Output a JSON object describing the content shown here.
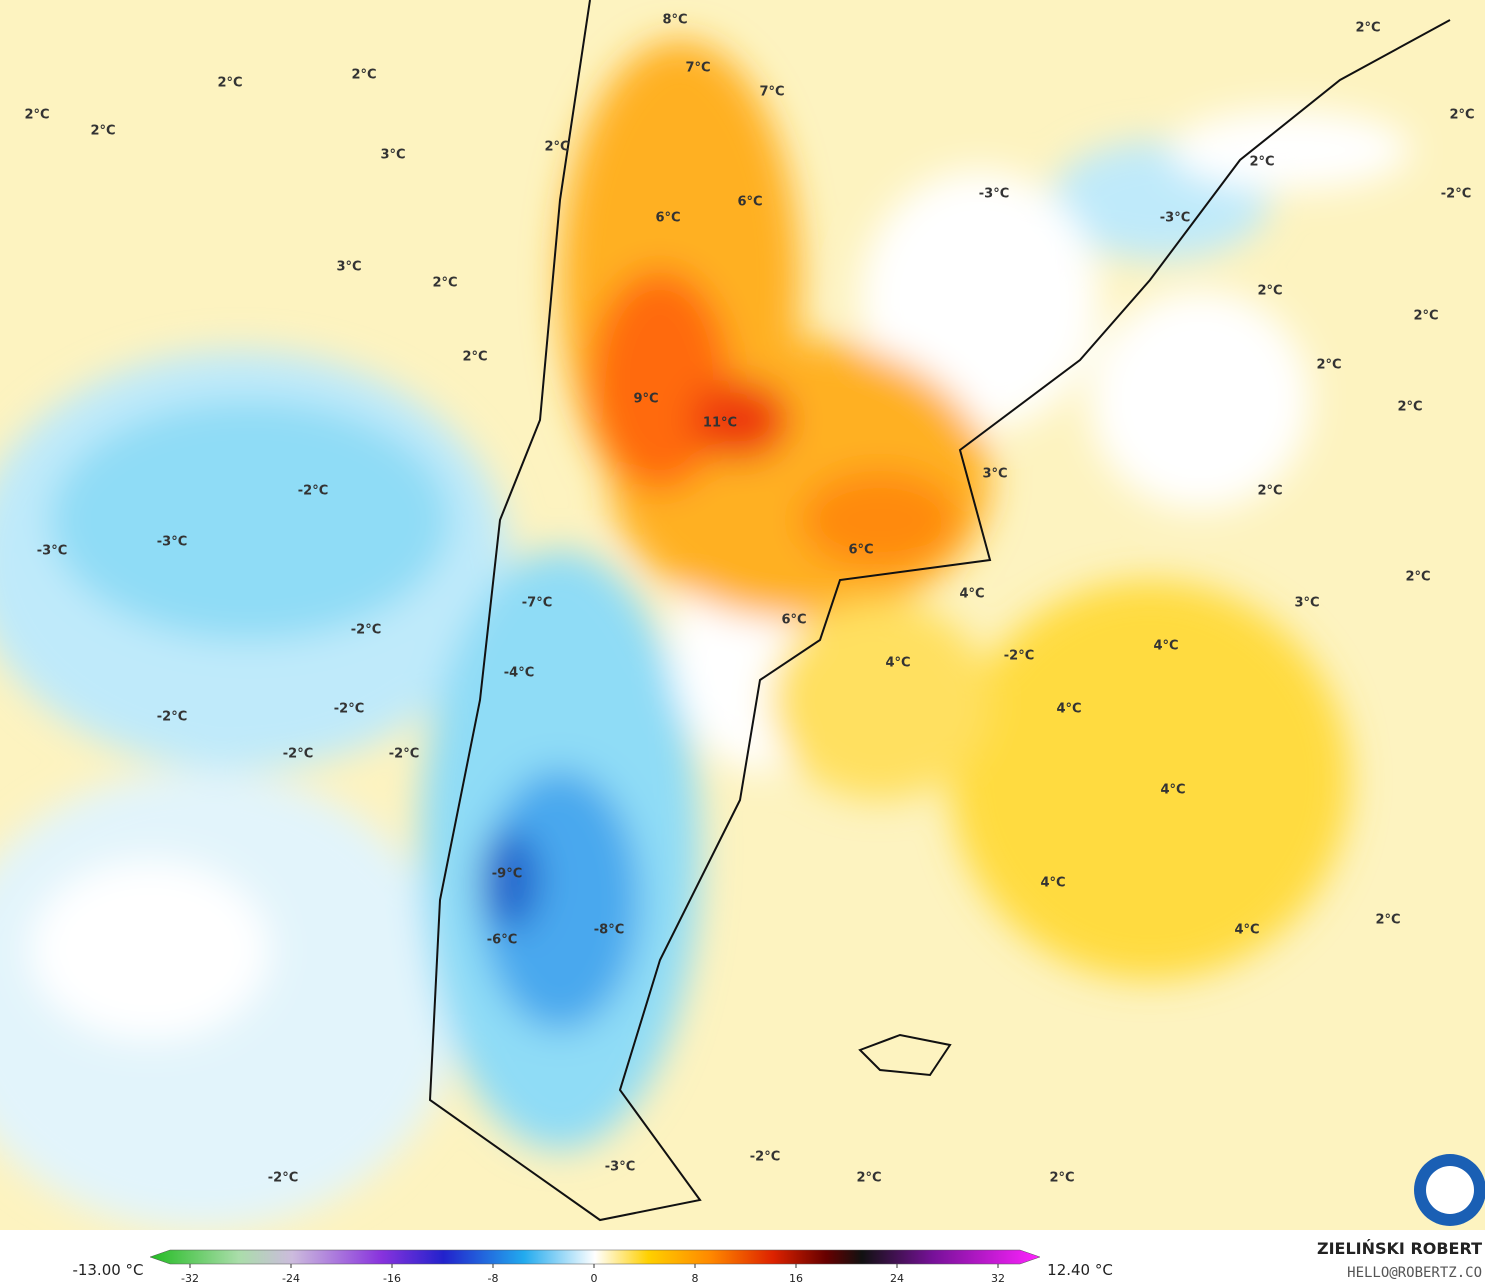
{
  "map": {
    "labels": [
      "8°C",
      "2°C",
      "7°C",
      "7°C",
      "2°C",
      "2°C",
      "2°C",
      "2°C",
      "2°C",
      "3°C",
      "2°C",
      "2°C",
      "-3°C",
      "-2°C",
      "6°C",
      "6°C",
      "-3°C",
      "3°C",
      "2°C",
      "2°C",
      "2°C",
      "2°C",
      "2°C",
      "9°C",
      "11°C",
      "2°C",
      "3°C",
      "-2°C",
      "2°C",
      "-3°C",
      "-3°C",
      "6°C",
      "2°C",
      "4°C",
      "-7°C",
      "3°C",
      "6°C",
      "-2°C",
      "4°C",
      "-2°C",
      "4°C",
      "-4°C",
      "-2°C",
      "-2°C",
      "4°C",
      "-2°C",
      "-2°C",
      "4°C",
      "-9°C",
      "4°C",
      "-8°C",
      "-6°C",
      "4°C",
      "2°C",
      "-2°C",
      "-3°C",
      "-2°C",
      "2°C",
      "2°C"
    ]
  },
  "colorbar": {
    "min_label": "-13.00 °C",
    "max_label": "12.40 °C",
    "ticks": [
      -32,
      -24,
      -16,
      -8,
      0,
      8,
      16,
      24,
      32
    ]
  },
  "credit": {
    "name": "ZIELIŃSKI ROBERT",
    "email": "HELLO@ROBERTZ.CO"
  }
}
